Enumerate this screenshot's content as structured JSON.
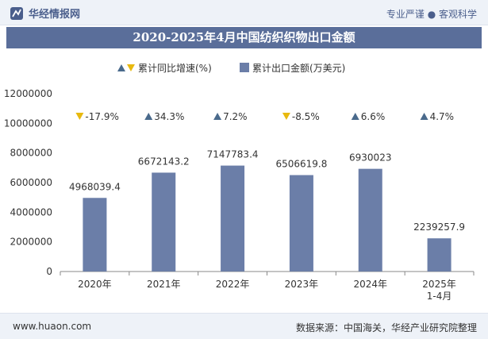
{
  "header": {
    "brand": "华经情报网",
    "tagline": "专业严谨 ● 客观科学"
  },
  "title": "2020-2025年4月中国纺织织物出口金额",
  "footer": {
    "url": "www.huaon.com",
    "source": "数据来源：中国海关，华经产业研究院整理"
  },
  "colors": {
    "bar": "#6b7ea8",
    "title_bg": "#5a6e9a",
    "up": "#4a6a8c",
    "down": "#e8b90f"
  },
  "chart_data": {
    "type": "bar",
    "categories": [
      "2020年",
      "2021年",
      "2022年",
      "2023年",
      "2024年",
      "2025年\n1-4月"
    ],
    "series": [
      {
        "name": "累计出口金额(万美元)",
        "values": [
          4968039.4,
          6672143.2,
          7147783.4,
          6506619.8,
          6930023,
          2239257.9
        ]
      },
      {
        "name": "累计同比增速(%)",
        "values": [
          -17.9,
          34.3,
          7.2,
          -8.5,
          6.6,
          4.7
        ]
      }
    ],
    "value_labels": [
      "4968039.4",
      "6672143.2",
      "7147783.4",
      "6506619.8",
      "6930023",
      "2239257.9"
    ],
    "growth_labels": [
      "-17.9%",
      "34.3%",
      "7.2%",
      "-8.5%",
      "6.6%",
      "4.7%"
    ],
    "ylim": [
      0,
      12000000
    ],
    "yticks": [
      0,
      2000000,
      4000000,
      6000000,
      8000000,
      10000000,
      12000000
    ],
    "legend": {
      "growth": "累计同比增速(%)",
      "amount": "累计出口金额(万美元)"
    },
    "grid": false,
    "legend_position": "top-center"
  }
}
